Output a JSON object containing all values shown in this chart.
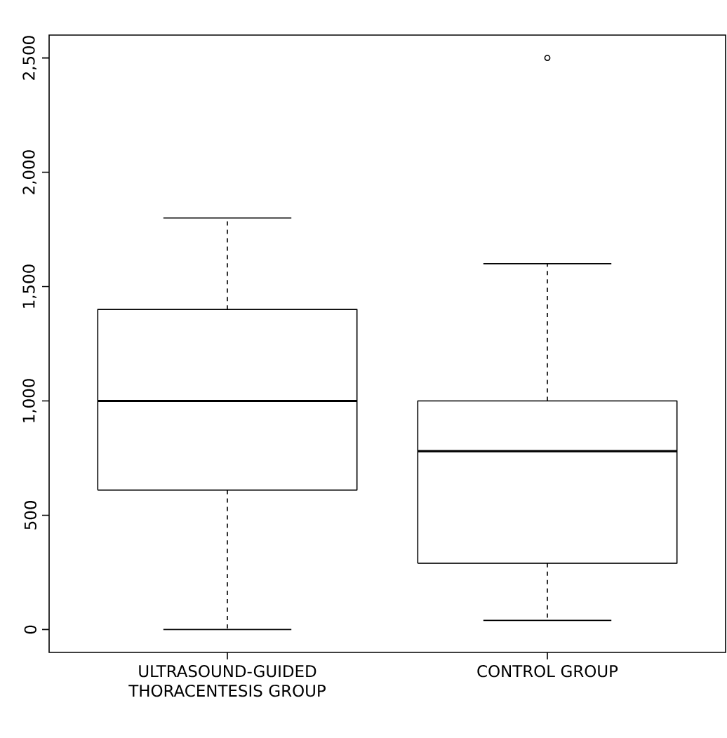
{
  "chart_data": {
    "type": "box",
    "categories": [
      "ULTRASOUND-GUIDED THORACENTESIS GROUP",
      "CONTROL GROUP"
    ],
    "boxes": [
      {
        "low": 0,
        "q1": 610,
        "median": 1000,
        "q3": 1400,
        "high": 1800
      },
      {
        "low": 40,
        "q1": 290,
        "median": 780,
        "q3": 1000,
        "high": 1600,
        "outliers": [
          2500
        ]
      }
    ],
    "ylim": [
      -100,
      2600
    ],
    "yticks": [
      {
        "value": 0,
        "label": "0"
      },
      {
        "value": 500,
        "label": "500"
      },
      {
        "value": 1000,
        "label": "1,000"
      },
      {
        "value": 1500,
        "label": "1,500"
      },
      {
        "value": 2000,
        "label": "2,000"
      },
      {
        "value": 2500,
        "label": "2,500"
      }
    ],
    "grid": false
  }
}
